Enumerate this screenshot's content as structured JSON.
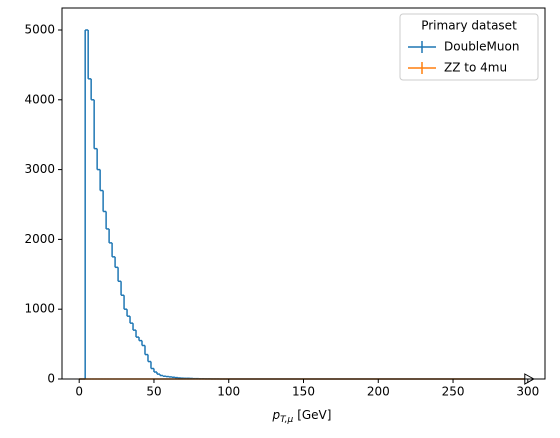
{
  "chart_data": {
    "type": "histogram",
    "xlabel": {
      "symbol": "p",
      "subscript": "T,μ",
      "unit": "[GeV]"
    },
    "legend_title": "Primary dataset",
    "legend": "upper right",
    "bins": [
      0,
      2,
      4,
      6,
      8,
      10,
      12,
      14,
      16,
      18,
      20,
      22,
      24,
      26,
      28,
      30,
      32,
      34,
      36,
      38,
      40,
      42,
      44,
      46,
      48,
      50,
      52,
      54,
      56,
      58,
      60,
      62,
      64,
      66,
      68,
      70,
      72,
      74,
      76,
      78,
      80,
      82,
      84,
      86,
      88,
      90,
      92,
      94,
      96,
      98,
      100,
      300
    ],
    "series": [
      {
        "name": "DoubleMuon",
        "color": "#1f77b4",
        "values": [
          0,
          0,
          5000,
          4300,
          4000,
          3300,
          3000,
          2700,
          2400,
          2150,
          1950,
          1750,
          1600,
          1400,
          1200,
          1000,
          900,
          800,
          700,
          600,
          550,
          480,
          350,
          250,
          150,
          100,
          70,
          50,
          40,
          35,
          30,
          25,
          20,
          15,
          12,
          10,
          10,
          8,
          5,
          5,
          3,
          3,
          2,
          2,
          1,
          1,
          1,
          0,
          0,
          0,
          0
        ]
      },
      {
        "name": "ZZ to 4mu",
        "color": "#ff7f0e",
        "values": [
          0,
          0,
          0,
          0,
          0,
          0,
          0,
          0,
          0,
          0,
          0,
          0,
          0,
          0,
          0,
          0,
          0,
          0,
          0,
          0,
          0,
          0,
          0,
          0,
          0,
          0,
          0,
          0,
          0,
          0,
          0,
          0,
          0,
          0,
          0,
          0,
          0,
          0,
          0,
          0,
          0,
          0,
          0,
          0,
          0,
          0,
          0,
          0,
          0,
          0,
          0
        ]
      }
    ],
    "xlim": [
      -11.5,
      311.5
    ],
    "xticks": [
      0,
      50,
      100,
      150,
      200,
      250,
      300
    ],
    "ylim": [
      0,
      5315
    ],
    "yticks": [
      0,
      1000,
      2000,
      3000,
      4000,
      5000
    ]
  }
}
